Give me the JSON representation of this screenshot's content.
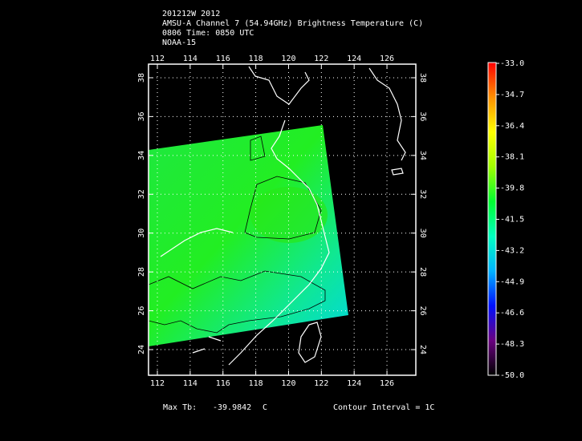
{
  "header": {
    "lines": [
      "201212W 2012",
      "AMSU-A Channel 7 (54.94GHz) Brightness Temperature (C)",
      "0806 Time: 0850 UTC",
      "NOAA-15"
    ]
  },
  "map": {
    "lonlim": [
      111.46,
      127.76
    ],
    "latlim": [
      22.68,
      38.7
    ],
    "lonticks": [
      112,
      114,
      116,
      118,
      120,
      122,
      124,
      126
    ],
    "latticks": [
      24,
      26,
      28,
      30,
      32,
      34,
      36,
      38
    ],
    "grid": true
  },
  "colorbar": {
    "lim": [
      -50,
      -33
    ],
    "colors": [
      "#000000",
      "#6a0080",
      "#0010ff",
      "#00b4ff",
      "#00ffc0",
      "#00ff30",
      "#a0ff00",
      "#ffff00",
      "#ff9000",
      "#ff0000"
    ],
    "ticks": [
      {
        "value": -33,
        "label": "-33.0"
      },
      {
        "value": -34.7,
        "label": "-34.7"
      },
      {
        "value": -36.4,
        "label": "-36.4"
      },
      {
        "value": -38.1,
        "label": "-38.1"
      },
      {
        "value": -39.8,
        "label": "-39.8"
      },
      {
        "value": -41.5,
        "label": "-41.5"
      },
      {
        "value": -43.2,
        "label": "-43.2"
      },
      {
        "value": -44.9,
        "label": "-44.9"
      },
      {
        "value": -46.6,
        "label": "-46.6"
      },
      {
        "value": -48.3,
        "label": "-48.3"
      },
      {
        "value": -50,
        "label": "-50.0"
      }
    ]
  },
  "footer": {
    "max_label": "Max Tb:",
    "max_value": "-39.9842",
    "max_unit": "C",
    "contour": "Contour Interval = 1C"
  }
}
